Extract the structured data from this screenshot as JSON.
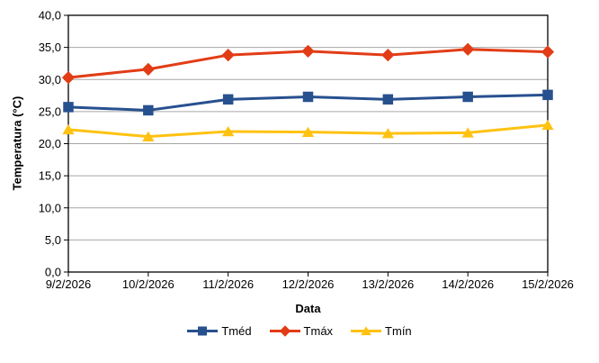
{
  "chart_data": {
    "type": "line",
    "title": "",
    "xlabel": "Data",
    "ylabel": "Temperatura (°C)",
    "categories": [
      "9/2/2026",
      "10/2/2026",
      "11/2/2026",
      "12/2/2026",
      "13/2/2026",
      "14/2/2026",
      "15/2/2026"
    ],
    "series": [
      {
        "name": "Tméd",
        "marker": "square",
        "color": "#27508F",
        "values": [
          25.7,
          25.2,
          26.9,
          27.3,
          26.9,
          27.3,
          27.6
        ]
      },
      {
        "name": "Tmáx",
        "marker": "diamond",
        "color": "#E23C16",
        "values": [
          30.3,
          31.6,
          33.8,
          34.4,
          33.8,
          34.7,
          34.3
        ]
      },
      {
        "name": "Tmín",
        "marker": "triangle",
        "color": "#FFC212",
        "values": [
          22.2,
          21.1,
          21.9,
          21.8,
          21.6,
          21.7,
          22.9
        ]
      }
    ],
    "ylim": [
      0,
      40
    ],
    "ytick_step": 5,
    "ytick_labels": [
      "0,0",
      "5,0",
      "10,0",
      "15,0",
      "20,0",
      "25,0",
      "30,0",
      "35,0",
      "40,0"
    ],
    "grid": true,
    "legend_position": "bottom",
    "colors": {
      "axis": "#000000",
      "gridline": "#A6A6A6",
      "background": "#FFFFFF",
      "text": "#000000"
    }
  }
}
